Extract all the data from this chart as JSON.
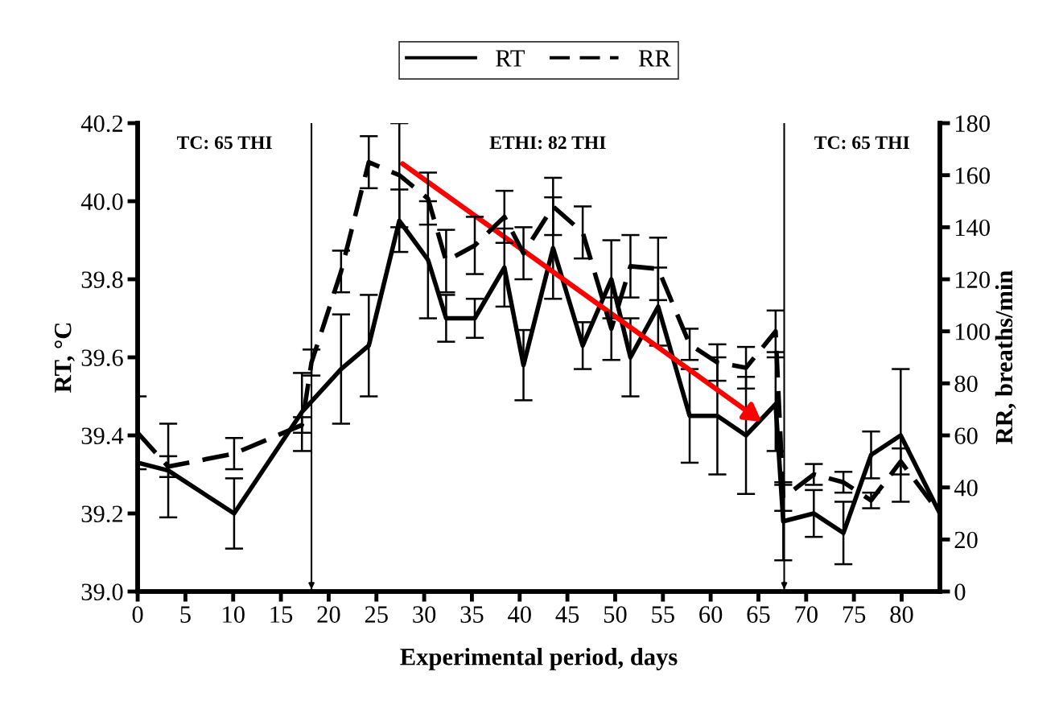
{
  "chart_data": {
    "type": "line",
    "xlabel": "Experimental period, days",
    "ylabel": "RT, °C",
    "y2label": "RR, breaths/min",
    "series": [
      {
        "name": "RT",
        "color": "#000000",
        "line_style": "solid",
        "axis": "y",
        "x": [
          0,
          3.2,
          10.1,
          17.2,
          21.3,
          24.2,
          27.4,
          30.4,
          32.3,
          35.3,
          38.4,
          40.4,
          43.5,
          46.6,
          49.6,
          51.6,
          54.5,
          57.8,
          60.7,
          63.7,
          66.8,
          67.6,
          70.8,
          73.9,
          76.8,
          79.9,
          84
        ],
        "values": [
          39.33,
          39.31,
          39.2,
          39.46,
          39.57,
          39.63,
          39.95,
          39.85,
          39.7,
          39.7,
          39.83,
          39.58,
          39.88,
          39.63,
          39.8,
          39.6,
          39.73,
          39.45,
          39.45,
          39.4,
          39.48,
          39.18,
          39.2,
          39.15,
          39.35,
          39.4,
          39.2
        ],
        "errors": [
          null,
          0.12,
          0.09,
          0.1,
          0.14,
          0.13,
          0.08,
          0.15,
          0.06,
          0.05,
          0.1,
          0.09,
          0.13,
          0.06,
          0.1,
          0.1,
          0.1,
          0.12,
          0.15,
          0.15,
          0.12,
          0.1,
          0.06,
          0.08,
          0.06,
          0.17,
          null
        ]
      },
      {
        "name": "RR",
        "color": "#000000",
        "line_style": "dashed",
        "axis": "y2",
        "x": [
          0,
          3.2,
          10.1,
          17.2,
          18.2,
          21.3,
          24.2,
          27.4,
          30.4,
          32.3,
          35.3,
          38.4,
          40.4,
          43.5,
          46.6,
          49.6,
          51.6,
          54.5,
          57.8,
          60.7,
          63.7,
          66.8,
          67.6,
          70.8,
          73.9,
          76.8,
          79.9,
          84
        ],
        "values": [
          61,
          48,
          53,
          64,
          88,
          123,
          165,
          160,
          151,
          127,
          133,
          144,
          130,
          148,
          138,
          101,
          125,
          124,
          95,
          88,
          86,
          100,
          36,
          45,
          42,
          35,
          50,
          30
        ],
        "errors": [
          14,
          4,
          6,
          3,
          5,
          8,
          10,
          20,
          10,
          12,
          11,
          10,
          10,
          11,
          10,
          12,
          12,
          12,
          6,
          7,
          8,
          8,
          5,
          4,
          4,
          3,
          5,
          null
        ]
      }
    ],
    "xlim": [
      0,
      84
    ],
    "xticks": [
      0,
      5,
      10,
      15,
      20,
      25,
      30,
      35,
      40,
      45,
      50,
      55,
      60,
      65,
      70,
      75,
      80
    ],
    "ylim": [
      39.0,
      40.2
    ],
    "yticks": [
      {
        "value": 39.0,
        "label": "39.0"
      },
      {
        "value": 39.2,
        "label": "39.2"
      },
      {
        "value": 39.4,
        "label": "39.4"
      },
      {
        "value": 39.6,
        "label": "39.6"
      },
      {
        "value": 39.8,
        "label": "39.8"
      },
      {
        "value": 40.0,
        "label": "40.0"
      },
      {
        "value": 40.2,
        "label": "40.2"
      }
    ],
    "y2lim": [
      0,
      180
    ],
    "y2ticks": [
      0,
      20,
      40,
      60,
      80,
      100,
      120,
      140,
      160,
      180
    ],
    "ref_lines": [
      {
        "axis": "x",
        "value": 18.2,
        "color": "#000000"
      },
      {
        "axis": "x",
        "value": 67.7,
        "color": "#000000"
      }
    ],
    "annotations": [
      "TC: 65 THI",
      "ETHI: 82 THI",
      "TC: 65 THI"
    ],
    "legend": "top",
    "grid": false
  }
}
